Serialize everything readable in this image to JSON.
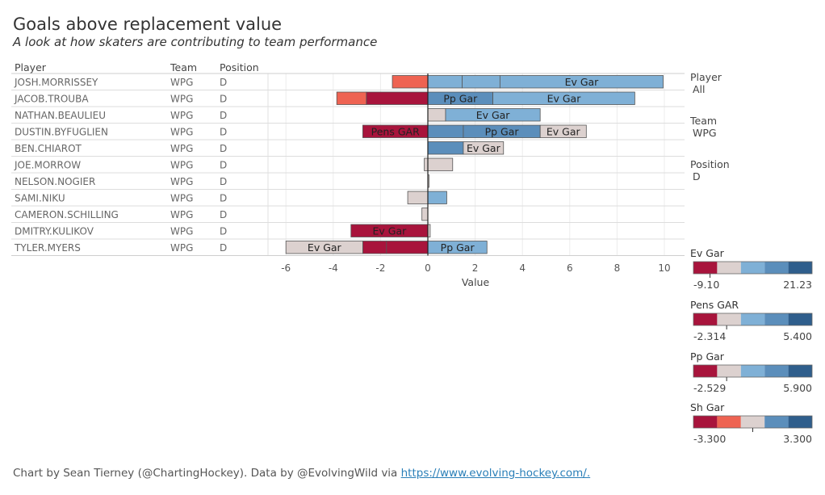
{
  "title": "Goals above replacement value",
  "subtitle": "A look at how skaters are contributing to team performance",
  "footer": {
    "text": "Chart by Sean Tierney (@ChartingHockey). Data by @EvolvingWild via ",
    "link": "https://www.evolving-hockey.com/."
  },
  "table_headers": [
    "Player",
    "Team",
    "Position"
  ],
  "filters": [
    {
      "label": "Player",
      "value": "All"
    },
    {
      "label": "Team",
      "value": "WPG"
    },
    {
      "label": "Position",
      "value": "D"
    }
  ],
  "chart_data": {
    "type": "bar",
    "orientation": "horizontal-stacked",
    "xlabel": "Value",
    "xlim": [
      -6.6,
      10.3
    ],
    "xticks": [
      -6,
      -4,
      -2,
      0,
      2,
      4,
      6,
      8,
      10
    ],
    "grid": true,
    "palette": {
      "red_dark": "#a8143c",
      "red_light": "#ee6352",
      "neutral": "#dcd1cf",
      "blue_light": "#7fb0d6",
      "blue_mid": "#5b8ebb",
      "blue_dark": "#2f5e8c"
    },
    "rows": [
      {
        "player": "JOSH.MORRISSEY",
        "team": "WPG",
        "position": "D",
        "segments": [
          {
            "metric": "Sh Gar",
            "value": -1.5,
            "color": "#ee6352",
            "label": ""
          },
          {
            "metric": "Pens GAR",
            "value": 1.45,
            "color": "#7fb0d6",
            "label": ""
          },
          {
            "metric": "Pp Gar",
            "value": 1.6,
            "color": "#7fb0d6",
            "label": ""
          },
          {
            "metric": "Ev Gar",
            "value": 6.9,
            "color": "#7fb0d6",
            "label": "Ev Gar"
          }
        ]
      },
      {
        "player": "JACOB.TROUBA",
        "team": "WPG",
        "position": "D",
        "segments": [
          {
            "metric": "Pens GAR",
            "value": -2.6,
            "color": "#a8143c",
            "label": ""
          },
          {
            "metric": "Sh Gar",
            "value": -1.25,
            "color": "#ee6352",
            "label": ""
          },
          {
            "metric": "Pp Gar",
            "value": 2.75,
            "color": "#5b8ebb",
            "label": "Pp Gar"
          },
          {
            "metric": "Ev Gar",
            "value": 6.0,
            "color": "#7fb0d6",
            "label": "Ev Gar"
          }
        ]
      },
      {
        "player": "NATHAN.BEAULIEU",
        "team": "WPG",
        "position": "D",
        "segments": [
          {
            "metric": "Pens GAR",
            "value": 0.75,
            "color": "#dcd1cf",
            "label": ""
          },
          {
            "metric": "Ev Gar",
            "value": 4.0,
            "color": "#7fb0d6",
            "label": "Ev Gar"
          }
        ]
      },
      {
        "player": "DUSTIN.BYFUGLIEN",
        "team": "WPG",
        "position": "D",
        "segments": [
          {
            "metric": "Pens GAR",
            "value": -2.75,
            "color": "#a8143c",
            "label": "Pens GAR"
          },
          {
            "metric": "Sh Gar",
            "value": 1.5,
            "color": "#5b8ebb",
            "label": ""
          },
          {
            "metric": "Pp Gar",
            "value": 3.25,
            "color": "#5b8ebb",
            "label": "Pp Gar"
          },
          {
            "metric": "Ev Gar",
            "value": 1.95,
            "color": "#dcd1cf",
            "label": "Ev Gar"
          }
        ]
      },
      {
        "player": "BEN.CHIAROT",
        "team": "WPG",
        "position": "D",
        "segments": [
          {
            "metric": "Pens GAR",
            "value": 1.5,
            "color": "#5b8ebb",
            "label": ""
          },
          {
            "metric": "Ev Gar",
            "value": 1.7,
            "color": "#dcd1cf",
            "label": "Ev Gar"
          }
        ]
      },
      {
        "player": "JOE.MORROW",
        "team": "WPG",
        "position": "D",
        "segments": [
          {
            "metric": "Pens GAR",
            "value": -0.15,
            "color": "#dcd1cf",
            "label": ""
          },
          {
            "metric": "Ev Gar",
            "value": 1.05,
            "color": "#dcd1cf",
            "label": ""
          }
        ]
      },
      {
        "player": "NELSON.NOGIER",
        "team": "WPG",
        "position": "D",
        "segments": [
          {
            "metric": "Ev Gar",
            "value": 0.05,
            "color": "#dcd1cf",
            "label": ""
          }
        ]
      },
      {
        "player": "SAMI.NIKU",
        "team": "WPG",
        "position": "D",
        "segments": [
          {
            "metric": "Pens GAR",
            "value": -0.85,
            "color": "#dcd1cf",
            "label": ""
          },
          {
            "metric": "Ev Gar",
            "value": 0.8,
            "color": "#7fb0d6",
            "label": ""
          }
        ]
      },
      {
        "player": "CAMERON.SCHILLING",
        "team": "WPG",
        "position": "D",
        "segments": [
          {
            "metric": "Ev Gar",
            "value": -0.25,
            "color": "#dcd1cf",
            "label": ""
          }
        ]
      },
      {
        "player": "DMITRY.KULIKOV",
        "team": "WPG",
        "position": "D",
        "segments": [
          {
            "metric": "Ev Gar",
            "value": -3.25,
            "color": "#a8143c",
            "label": "Ev Gar"
          },
          {
            "metric": "Pens GAR",
            "value": 0.1,
            "color": "#dcd1cf",
            "label": ""
          }
        ]
      },
      {
        "player": "TYLER.MYERS",
        "team": "WPG",
        "position": "D",
        "segments": [
          {
            "metric": "Pens GAR",
            "value": -1.75,
            "color": "#a8143c",
            "label": ""
          },
          {
            "metric": "Sh Gar",
            "value": -1.0,
            "color": "#a8143c",
            "label": ""
          },
          {
            "metric": "Ev Gar",
            "value": -3.25,
            "color": "#dcd1cf",
            "label": "Ev Gar"
          },
          {
            "metric": "Pp Gar",
            "value": 2.5,
            "color": "#7fb0d6",
            "label": "Pp Gar"
          }
        ]
      }
    ],
    "legends": [
      {
        "title": "Ev Gar",
        "min": "-9.10",
        "max": "21.23",
        "marker_fraction": 0.14,
        "colors": [
          "#a8143c",
          "#dcd1cf",
          "#7fb0d6",
          "#5b8ebb",
          "#2f5e8c"
        ]
      },
      {
        "title": "Pens GAR",
        "min": "-2.314",
        "max": "5.400",
        "marker_fraction": 0.28,
        "colors": [
          "#a8143c",
          "#dcd1cf",
          "#7fb0d6",
          "#5b8ebb",
          "#2f5e8c"
        ]
      },
      {
        "title": "Pp Gar",
        "min": "-2.529",
        "max": "5.900",
        "marker_fraction": 0.28,
        "colors": [
          "#a8143c",
          "#dcd1cf",
          "#7fb0d6",
          "#5b8ebb",
          "#2f5e8c"
        ]
      },
      {
        "title": "Sh Gar",
        "min": "-3.300",
        "max": "3.300",
        "marker_fraction": 0.5,
        "colors": [
          "#a8143c",
          "#ee6352",
          "#dcd1cf",
          "#5b8ebb",
          "#2f5e8c"
        ]
      }
    ]
  }
}
